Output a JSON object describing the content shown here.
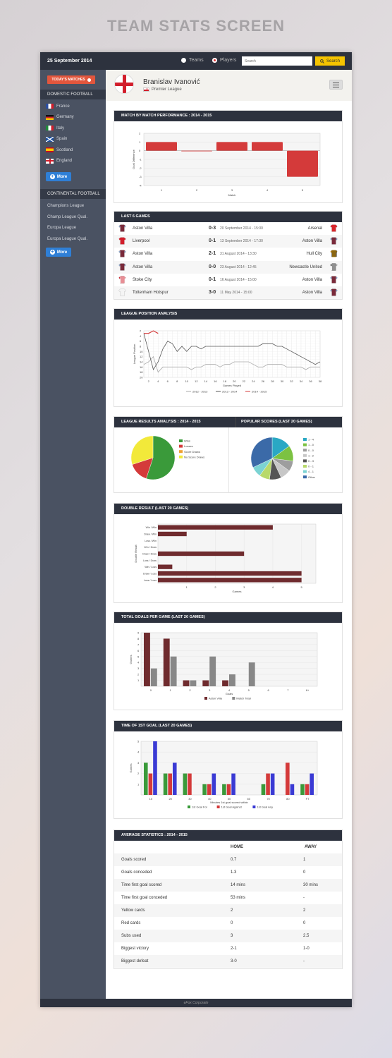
{
  "page_title": "TEAM STATS SCREEN",
  "topbar": {
    "date": "25 September 2014",
    "radio_teams": "Teams",
    "radio_players": "Players",
    "search_placeholder": "Search",
    "search_button": "Search"
  },
  "sidebar": {
    "today_button": "TODAY'S MATCHES",
    "domestic_head": "DOMESTIC FOOTBALL",
    "domestic": [
      {
        "label": "France",
        "flag": "france"
      },
      {
        "label": "Germany",
        "flag": "germany"
      },
      {
        "label": "Italy",
        "flag": "italy"
      },
      {
        "label": "Spain",
        "flag": "scotland"
      },
      {
        "label": "Scotland",
        "flag": "spain"
      },
      {
        "label": "England",
        "flag": "england"
      }
    ],
    "more1": "More",
    "continental_head": "CONTINENTAL FOOTBALL",
    "continental": [
      "Champions League",
      "Champ League Qual.",
      "Europa League",
      "Europa League Qual."
    ],
    "more2": "More"
  },
  "player": {
    "name": "Branislav Ivanović",
    "league": "Premier League"
  },
  "match_perf": {
    "title": "MATCH BY MATCH PERFORMANCE : 2014 - 2015",
    "ylabel": "Goal Difference",
    "xlabel": "Match",
    "y_ticks": [
      "2",
      "1",
      "0",
      "-1",
      "-2",
      "-3",
      "-4"
    ],
    "x_ticks": [
      "1",
      "2",
      "3",
      "4",
      "5"
    ]
  },
  "chart_data": [
    {
      "type": "bar",
      "title": "MATCH BY MATCH PERFORMANCE : 2014 - 2015",
      "categories": [
        "1",
        "2",
        "3",
        "4",
        "5"
      ],
      "values": [
        1,
        0,
        1,
        1,
        -3
      ],
      "xlabel": "Match",
      "ylabel": "Goal Difference",
      "ylim": [
        -4,
        2
      ]
    },
    {
      "type": "line",
      "title": "LEAGUE POSITION ANALYSIS",
      "xlabel": "Games Played",
      "ylabel": "League Position",
      "ylim": [
        20,
        2
      ],
      "series": [
        {
          "name": "2012 - 2013",
          "values": [
            15,
            14,
            12,
            18,
            16,
            16,
            16,
            16,
            16,
            16,
            17,
            16,
            16,
            15,
            15,
            15,
            16,
            15,
            15,
            14,
            14,
            14,
            14,
            15,
            16,
            16,
            15,
            15,
            15,
            15,
            16,
            16,
            16,
            16,
            17,
            16,
            16,
            16
          ]
        },
        {
          "name": "2013 - 2014",
          "values": [
            3,
            10,
            17,
            14,
            9,
            6,
            7,
            10,
            8,
            10,
            8,
            8,
            9,
            8,
            8,
            8,
            8,
            8,
            8,
            8,
            8,
            8,
            8,
            8,
            8,
            7,
            7,
            7,
            8,
            8,
            9,
            10,
            11,
            12,
            13,
            14,
            15,
            14
          ]
        },
        {
          "name": "2014 - 2015",
          "values": [
            3,
            3,
            2,
            3
          ]
        }
      ]
    },
    {
      "type": "pie",
      "title": "LEAGUE RESULTS ANALYSIS : 2014 - 2015",
      "series": [
        {
          "name": "Wins",
          "value": 55,
          "color": "#3a9a3a"
        },
        {
          "name": "Losses",
          "value": 15,
          "color": "#d43a3a"
        },
        {
          "name": "Score Draws",
          "value": 0,
          "color": "#f0a030"
        },
        {
          "name": "No Score Draws",
          "value": 30,
          "color": "#f2e93a"
        }
      ]
    },
    {
      "type": "pie",
      "title": "POPULAR SCORES (LAST 20 GAMES)",
      "series": [
        {
          "name": "1 - 4",
          "value": 15,
          "color": "#2aa8c4"
        },
        {
          "name": "1 - 0",
          "value": 12,
          "color": "#7cc242"
        },
        {
          "name": "0 - 0",
          "value": 8,
          "color": "#9e9e9e"
        },
        {
          "name": "1 - 2",
          "value": 8,
          "color": "#c7c7c7"
        },
        {
          "name": "0 - 3",
          "value": 9,
          "color": "#555555"
        },
        {
          "name": "0 - 1",
          "value": 8,
          "color": "#b8d96b"
        },
        {
          "name": "4 - 1",
          "value": 8,
          "color": "#7bd3d3"
        },
        {
          "name": "Other",
          "value": 32,
          "color": "#3b6aa8"
        }
      ]
    },
    {
      "type": "bar",
      "title": "DOUBLE RESULT (LAST 20 GAMES)",
      "categories": [
        "Win / Win",
        "Draw / Win",
        "Loss / Win",
        "Win / Draw",
        "Draw / Draw",
        "Loss / Draw",
        "Win / Loss",
        "Draw / Loss",
        "Loss / Loss"
      ],
      "values": [
        4,
        1,
        0,
        0,
        3,
        0,
        0.5,
        5,
        5
      ],
      "xlabel": "Games",
      "ylabel": "Double Result",
      "xlim": [
        0,
        5.5
      ]
    },
    {
      "type": "bar",
      "title": "TOTAL GOALS PER GAME (LAST 20 GAMES)",
      "categories": [
        "0",
        "1",
        "2",
        "3",
        "4",
        "5",
        "6",
        "7",
        "8+"
      ],
      "series": [
        {
          "name": "Aston Villa",
          "values": [
            9,
            8,
            1,
            1,
            1,
            0,
            0,
            0,
            0
          ]
        },
        {
          "name": "Match Total",
          "values": [
            3,
            5,
            1,
            5,
            2,
            4,
            0,
            0,
            0
          ]
        }
      ],
      "xlabel": "Goals",
      "ylabel": "Games",
      "ylim": [
        0,
        9
      ]
    },
    {
      "type": "bar",
      "title": "TIME OF 1ST GOAL (LAST 20 GAMES)",
      "categories": [
        "10",
        "20",
        "30",
        "40",
        "50",
        "60",
        "70",
        "80",
        "FT"
      ],
      "series": [
        {
          "name": "1st Goal For",
          "values": [
            3,
            2,
            2,
            1,
            1,
            0,
            1,
            0,
            1
          ]
        },
        {
          "name": "1st Goal Against",
          "values": [
            2,
            2,
            2,
            1,
            1,
            0,
            2,
            3,
            1
          ]
        },
        {
          "name": "1st Goal Any",
          "values": [
            5,
            3,
            0,
            2,
            2,
            0,
            2,
            1,
            2
          ]
        }
      ],
      "xlabel": "Minutes 1st goal scored within",
      "ylabel": "Games",
      "ylim": [
        0,
        5
      ]
    }
  ],
  "last6": {
    "title": "LAST 6 GAMES",
    "rows": [
      {
        "home": "Aston Villa",
        "score": "0-3",
        "date": "20 September 2014 - 15:00",
        "away": "Arsenal",
        "hk": "villa",
        "ak": "arsenal"
      },
      {
        "home": "Liverpool",
        "score": "0-1",
        "date": "13 September 2014 - 17:30",
        "away": "Aston Villa",
        "hk": "liverpool",
        "ak": "villa"
      },
      {
        "home": "Aston Villa",
        "score": "2-1",
        "date": "31 August 2014 - 13:30",
        "away": "Hull City",
        "hk": "villa",
        "ak": "hull"
      },
      {
        "home": "Aston Villa",
        "score": "0-0",
        "date": "23 August 2014 - 12:45",
        "away": "Newcastle United",
        "hk": "villa",
        "ak": "newcastle"
      },
      {
        "home": "Stoke City",
        "score": "0-1",
        "date": "16 August 2014 - 15:00",
        "away": "Aston Villa",
        "hk": "stoke",
        "ak": "villa"
      },
      {
        "home": "Tottenham Hotspur",
        "score": "3-0",
        "date": "11 May 2014 - 15:00",
        "away": "Aston Villa",
        "hk": "spurs",
        "ak": "villa"
      }
    ]
  },
  "league_pos": {
    "title": "LEAGUE POSITION ANALYSIS",
    "ylabel": "League Position",
    "xlabel": "Games Played",
    "y_ticks": [
      "2",
      "4",
      "6",
      "8",
      "10",
      "12",
      "14",
      "16",
      "18",
      "20"
    ],
    "x_ticks": [
      "2",
      "4",
      "6",
      "8",
      "10",
      "12",
      "14",
      "16",
      "18",
      "20",
      "22",
      "24",
      "26",
      "28",
      "30",
      "32",
      "34",
      "36",
      "38"
    ],
    "legend": [
      "2012 - 2013",
      "2013 - 2014",
      "2014 - 2015"
    ]
  },
  "results": {
    "title": "LEAGUE RESULTS ANALYSIS : 2014 - 2015"
  },
  "popular": {
    "title": "POPULAR SCORES (LAST 20 GAMES)"
  },
  "double": {
    "title": "DOUBLE RESULT (LAST 20 GAMES)",
    "ylabel": "Double Result",
    "xlabel": "Games",
    "x_ticks": [
      "1",
      "2",
      "3",
      "4",
      "5"
    ]
  },
  "total_goals": {
    "title": "TOTAL GOALS PER GAME (LAST 20 GAMES)",
    "ylabel": "Games",
    "xlabel": "Goals",
    "y_ticks": [
      "9",
      "8",
      "7",
      "6",
      "5",
      "4",
      "3",
      "2",
      "1"
    ]
  },
  "first_goal": {
    "title": "TIME OF 1ST GOAL (LAST 20 GAMES)",
    "ylabel": "Games",
    "xlabel": "Minutes 1st goal scored within",
    "y_ticks": [
      "5",
      "4",
      "3",
      "2",
      "1"
    ]
  },
  "avg": {
    "title": "AVERAGE STATISTICS : 2014 - 2015",
    "home": "HOME",
    "away": "AWAY",
    "rows": [
      {
        "label": "Goals scored",
        "home": "0.7",
        "away": "1"
      },
      {
        "label": "Goals conceded",
        "home": "1.3",
        "away": "0"
      },
      {
        "label": "Time first goal scored",
        "home": "14 mins",
        "away": "30 mins"
      },
      {
        "label": "Time first goal conceded",
        "home": "53 mins",
        "away": "-"
      },
      {
        "label": "Yellow cards",
        "home": "2",
        "away": "2"
      },
      {
        "label": "Red cards",
        "home": "0",
        "away": "0"
      },
      {
        "label": "Subs used",
        "home": "3",
        "away": "2.5"
      },
      {
        "label": "Biggest victory",
        "home": "2-1",
        "away": "1-0"
      },
      {
        "label": "Biggest defeat",
        "home": "3-0",
        "away": "-"
      }
    ]
  },
  "footer": "eFox Corporate",
  "colors": {
    "villa": "#7a2a3a",
    "accent": "#f5c400",
    "dark": "#2d323e",
    "bar_red": "#d43a3a",
    "bar_maroon": "#6f2b2e"
  }
}
